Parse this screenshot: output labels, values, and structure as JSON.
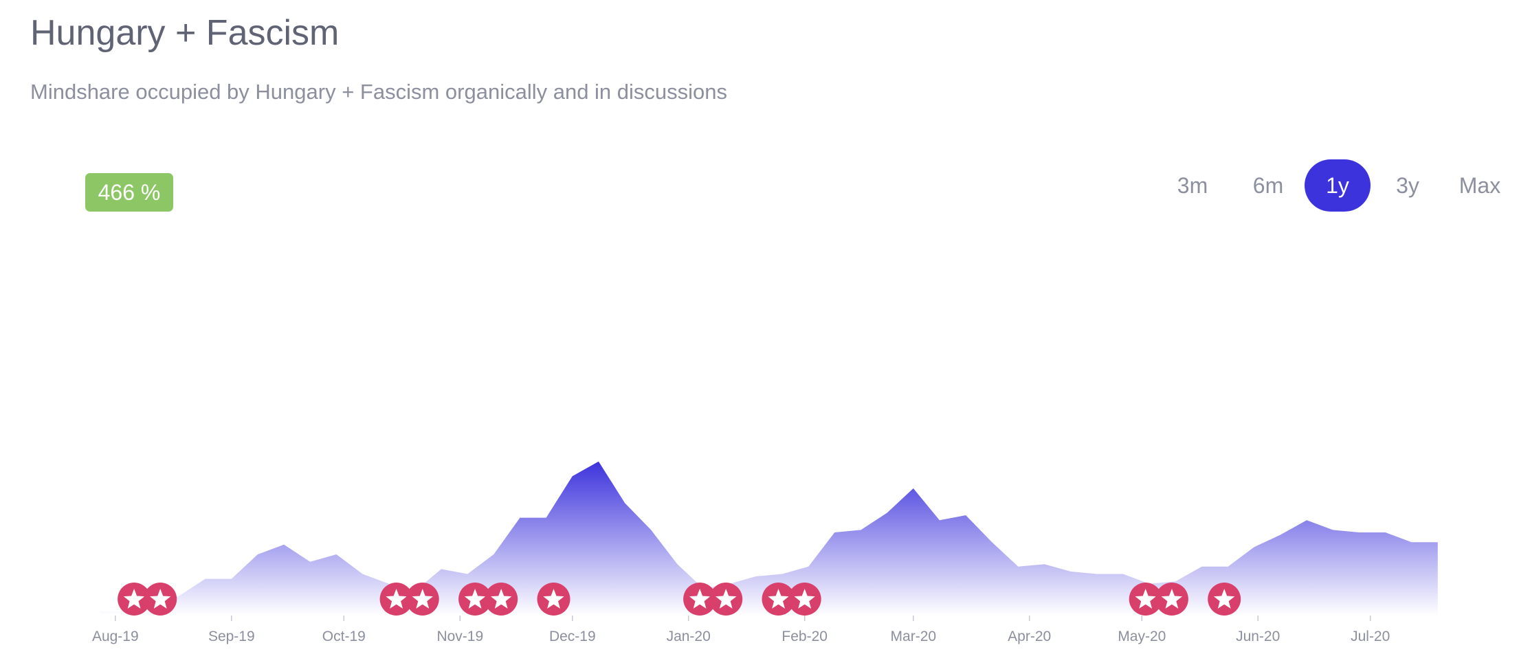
{
  "header": {
    "title": "Hungary + Fascism",
    "subtitle": "Mindshare occupied by Hungary + Fascism organically and in discussions"
  },
  "badge": {
    "value": "466 %",
    "color": "#8cc665"
  },
  "range_tabs": [
    {
      "label": "3m",
      "active": false
    },
    {
      "label": "6m",
      "active": false
    },
    {
      "label": "1y",
      "active": true
    },
    {
      "label": "3y",
      "active": false
    },
    {
      "label": "Max",
      "active": false
    }
  ],
  "colors": {
    "area_top": "#3d33dc",
    "area_bottom": "#ffffff",
    "marker": "#d83f6b",
    "active_tab": "#3d33dc"
  },
  "chart_data": {
    "type": "area",
    "x_ticks": [
      "Aug-19",
      "Sep-19",
      "Oct-19",
      "Nov-19",
      "Dec-19",
      "Jan-20",
      "Feb-20",
      "Mar-20",
      "Apr-20",
      "May-20",
      "Jun-20",
      "Jul-20"
    ],
    "x_start": "2019-07-28",
    "x_end": "2020-07-26",
    "ylim": [
      0,
      100
    ],
    "grid": false,
    "series": [
      {
        "x": [
          "2019-07-28",
          "2019-08-04",
          "2019-08-11",
          "2019-08-18",
          "2019-08-25",
          "2019-09-01",
          "2019-09-08",
          "2019-09-15",
          "2019-09-22",
          "2019-09-29",
          "2019-10-06",
          "2019-10-13",
          "2019-10-20",
          "2019-10-27",
          "2019-11-03",
          "2019-11-10",
          "2019-11-17",
          "2019-11-24",
          "2019-12-01",
          "2019-12-08",
          "2019-12-15",
          "2019-12-22",
          "2019-12-29",
          "2020-01-05",
          "2020-01-12",
          "2020-01-19",
          "2020-01-26",
          "2020-02-02",
          "2020-02-09",
          "2020-02-16",
          "2020-02-23",
          "2020-03-01",
          "2020-03-08",
          "2020-03-15",
          "2020-03-22",
          "2020-03-29",
          "2020-04-05",
          "2020-04-12",
          "2020-04-19",
          "2020-04-26",
          "2020-05-03",
          "2020-05-10",
          "2020-05-17",
          "2020-05-24",
          "2020-05-31",
          "2020-06-07",
          "2020-06-14",
          "2020-06-21",
          "2020-06-28",
          "2020-07-05",
          "2020-07-12",
          "2020-07-19"
        ],
        "values": [
          1.8,
          1.8,
          4,
          8,
          15,
          15,
          25,
          29,
          22,
          25,
          17,
          13,
          10,
          19,
          17,
          25,
          40,
          40,
          57,
          63,
          46,
          35,
          21,
          11,
          13,
          16,
          17,
          20,
          34,
          35,
          42,
          52,
          39,
          41,
          30,
          20,
          21,
          18,
          17,
          17,
          13,
          14,
          20,
          20,
          28,
          33,
          39,
          35,
          34,
          34,
          30,
          30
        ]
      }
    ],
    "event_markers": [
      "2019-08-06",
      "2019-08-13",
      "2019-10-15",
      "2019-10-22",
      "2019-11-05",
      "2019-11-12",
      "2019-11-26",
      "2020-01-04",
      "2020-01-11",
      "2020-01-25",
      "2020-02-01",
      "2020-05-02",
      "2020-05-09",
      "2020-05-23"
    ]
  }
}
